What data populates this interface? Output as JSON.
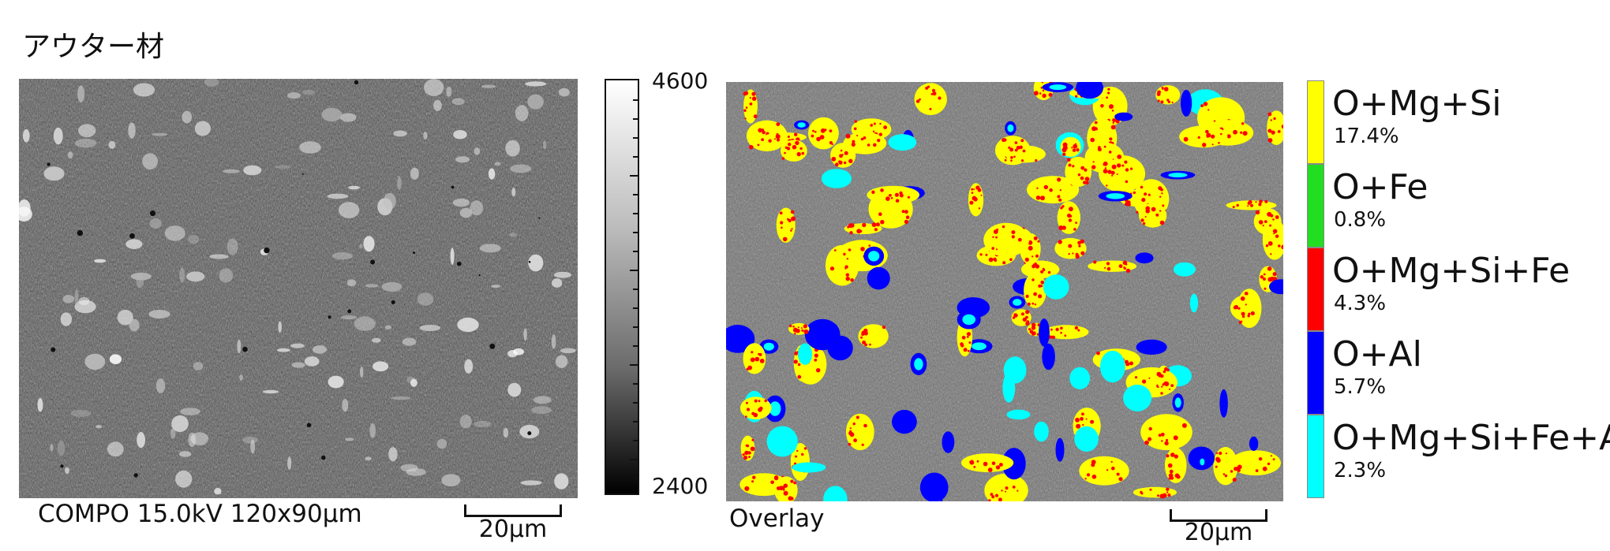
{
  "title": "アウター材",
  "sem_panel": {
    "caption": "COMPO 15.0kV 120x90μm",
    "scale_label": "20μm"
  },
  "colorbar": {
    "max": "4600",
    "min": "2400"
  },
  "overlay_panel": {
    "caption": "Overlay",
    "scale_label": "20μm"
  },
  "legend": [
    {
      "name": "O+Mg+Si",
      "percent": "17.4%",
      "color": "#ffff00"
    },
    {
      "name": "O+Fe",
      "percent": "0.8%",
      "color": "#22dd22"
    },
    {
      "name": "O+Mg+Si+Fe",
      "percent": "4.3%",
      "color": "#ff0000"
    },
    {
      "name": "O+Al",
      "percent": "5.7%",
      "color": "#0000ff"
    },
    {
      "name": "O+Mg+Si+Fe+Al",
      "percent": "2.3%",
      "color": "#00ffff"
    }
  ]
}
